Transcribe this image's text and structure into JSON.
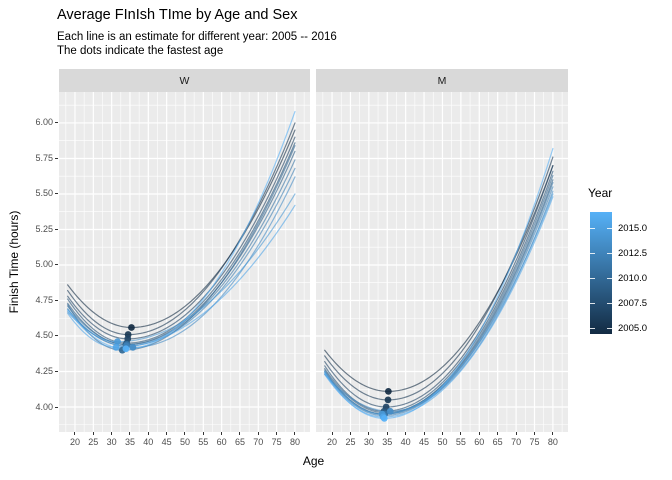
{
  "chart_data": {
    "type": "line",
    "title": "Average FInIsh TIme by Age and Sex",
    "subtitle1": "Each line is an estimate for different year: 2005 -- 2016",
    "subtitle2": "The dots indicate the fastest age",
    "xlabel": "Age",
    "ylabel": "Finish Time (hours)",
    "x_ticks": [
      20,
      25,
      30,
      35,
      40,
      45,
      50,
      55,
      60,
      65,
      70,
      75,
      80
    ],
    "y_ticks": [
      {
        "label": "6.00",
        "value": 6.0
      },
      {
        "label": "5.75",
        "value": 5.75
      },
      {
        "label": "5.50",
        "value": 5.5
      },
      {
        "label": "5.25",
        "value": 5.25
      },
      {
        "label": "5.00",
        "value": 5.0
      },
      {
        "label": "4.75",
        "value": 4.75
      },
      {
        "label": "4.50",
        "value": 4.5
      },
      {
        "label": "4.25",
        "value": 4.25
      },
      {
        "label": "4.00",
        "value": 4.0
      }
    ],
    "xlim": [
      15.64,
      84.1
    ],
    "ylim": [
      3.824,
      6.218
    ],
    "age_range": [
      18,
      80
    ],
    "grid": true,
    "panel_bg": "#EBEBEB",
    "strip_bg": "#D9D9D9",
    "gridline_color": "#FFFFFF",
    "line_opacity": 0.6,
    "dot_opacity": 0.92,
    "facets": [
      {
        "label": "W",
        "series": [
          {
            "year": 2005,
            "start": 4.86,
            "min_age": 35.4,
            "min_time": 4.56,
            "end": 5.95
          },
          {
            "year": 2006,
            "start": 4.82,
            "min_age": 34.5,
            "min_time": 4.51,
            "end": 6.0
          },
          {
            "year": 2007,
            "start": 4.78,
            "min_age": 34.4,
            "min_time": 4.48,
            "end": 5.9
          },
          {
            "year": 2008,
            "start": 4.76,
            "min_age": 34.1,
            "min_time": 4.45,
            "end": 5.86
          },
          {
            "year": 2009,
            "start": 4.73,
            "min_age": 33.9,
            "min_time": 4.44,
            "end": 5.8
          },
          {
            "year": 2010,
            "start": 4.72,
            "min_age": 32.9,
            "min_time": 4.4,
            "end": 5.84
          },
          {
            "year": 2011,
            "start": 4.71,
            "min_age": 34.2,
            "min_time": 4.44,
            "end": 5.74
          },
          {
            "year": 2012,
            "start": 4.69,
            "min_age": 34.0,
            "min_time": 4.43,
            "end": 5.68
          },
          {
            "year": 2013,
            "start": 4.67,
            "min_age": 35.8,
            "min_time": 4.42,
            "end": 5.62
          },
          {
            "year": 2014,
            "start": 4.69,
            "min_age": 31.6,
            "min_time": 4.46,
            "end": 5.5
          },
          {
            "year": 2015,
            "start": 4.66,
            "min_age": 31.2,
            "min_time": 4.42,
            "end": 5.42
          },
          {
            "year": 2016,
            "start": 4.68,
            "min_age": 33.9,
            "min_time": 4.41,
            "end": 6.08
          }
        ]
      },
      {
        "label": "M",
        "series": [
          {
            "year": 2005,
            "start": 4.4,
            "min_age": 35.3,
            "min_time": 4.11,
            "end": 5.7
          },
          {
            "year": 2006,
            "start": 4.36,
            "min_age": 35.2,
            "min_time": 4.05,
            "end": 5.76
          },
          {
            "year": 2007,
            "start": 4.32,
            "min_age": 34.7,
            "min_time": 4.0,
            "end": 5.7
          },
          {
            "year": 2008,
            "start": 4.29,
            "min_age": 34.1,
            "min_time": 3.97,
            "end": 5.66
          },
          {
            "year": 2009,
            "start": 4.27,
            "min_age": 34.4,
            "min_time": 3.96,
            "end": 5.6
          },
          {
            "year": 2010,
            "start": 4.26,
            "min_age": 33.8,
            "min_time": 3.95,
            "end": 5.63
          },
          {
            "year": 2011,
            "start": 4.25,
            "min_age": 34.3,
            "min_time": 3.95,
            "end": 5.58
          },
          {
            "year": 2012,
            "start": 4.24,
            "min_age": 34.0,
            "min_time": 3.94,
            "end": 5.55
          },
          {
            "year": 2013,
            "start": 4.23,
            "min_age": 35.8,
            "min_time": 3.97,
            "end": 5.52
          },
          {
            "year": 2014,
            "start": 4.25,
            "min_age": 33.6,
            "min_time": 3.95,
            "end": 5.5
          },
          {
            "year": 2015,
            "start": 4.23,
            "min_age": 33.9,
            "min_time": 3.93,
            "end": 5.48
          },
          {
            "year": 2016,
            "start": 4.24,
            "min_age": 34.2,
            "min_time": 3.92,
            "end": 5.82
          }
        ]
      }
    ],
    "legend": {
      "title": "Year",
      "position": "right",
      "color_low": "#132B43",
      "color_high": "#56B1F7",
      "year_min": 2005,
      "year_max": 2016,
      "ticks": [
        {
          "label": "2015.0",
          "value": 2015.0
        },
        {
          "label": "2012.5",
          "value": 2012.5
        },
        {
          "label": "2010.0",
          "value": 2010.0
        },
        {
          "label": "2007.5",
          "value": 2007.5
        },
        {
          "label": "2005.0",
          "value": 2005.0
        }
      ]
    }
  }
}
